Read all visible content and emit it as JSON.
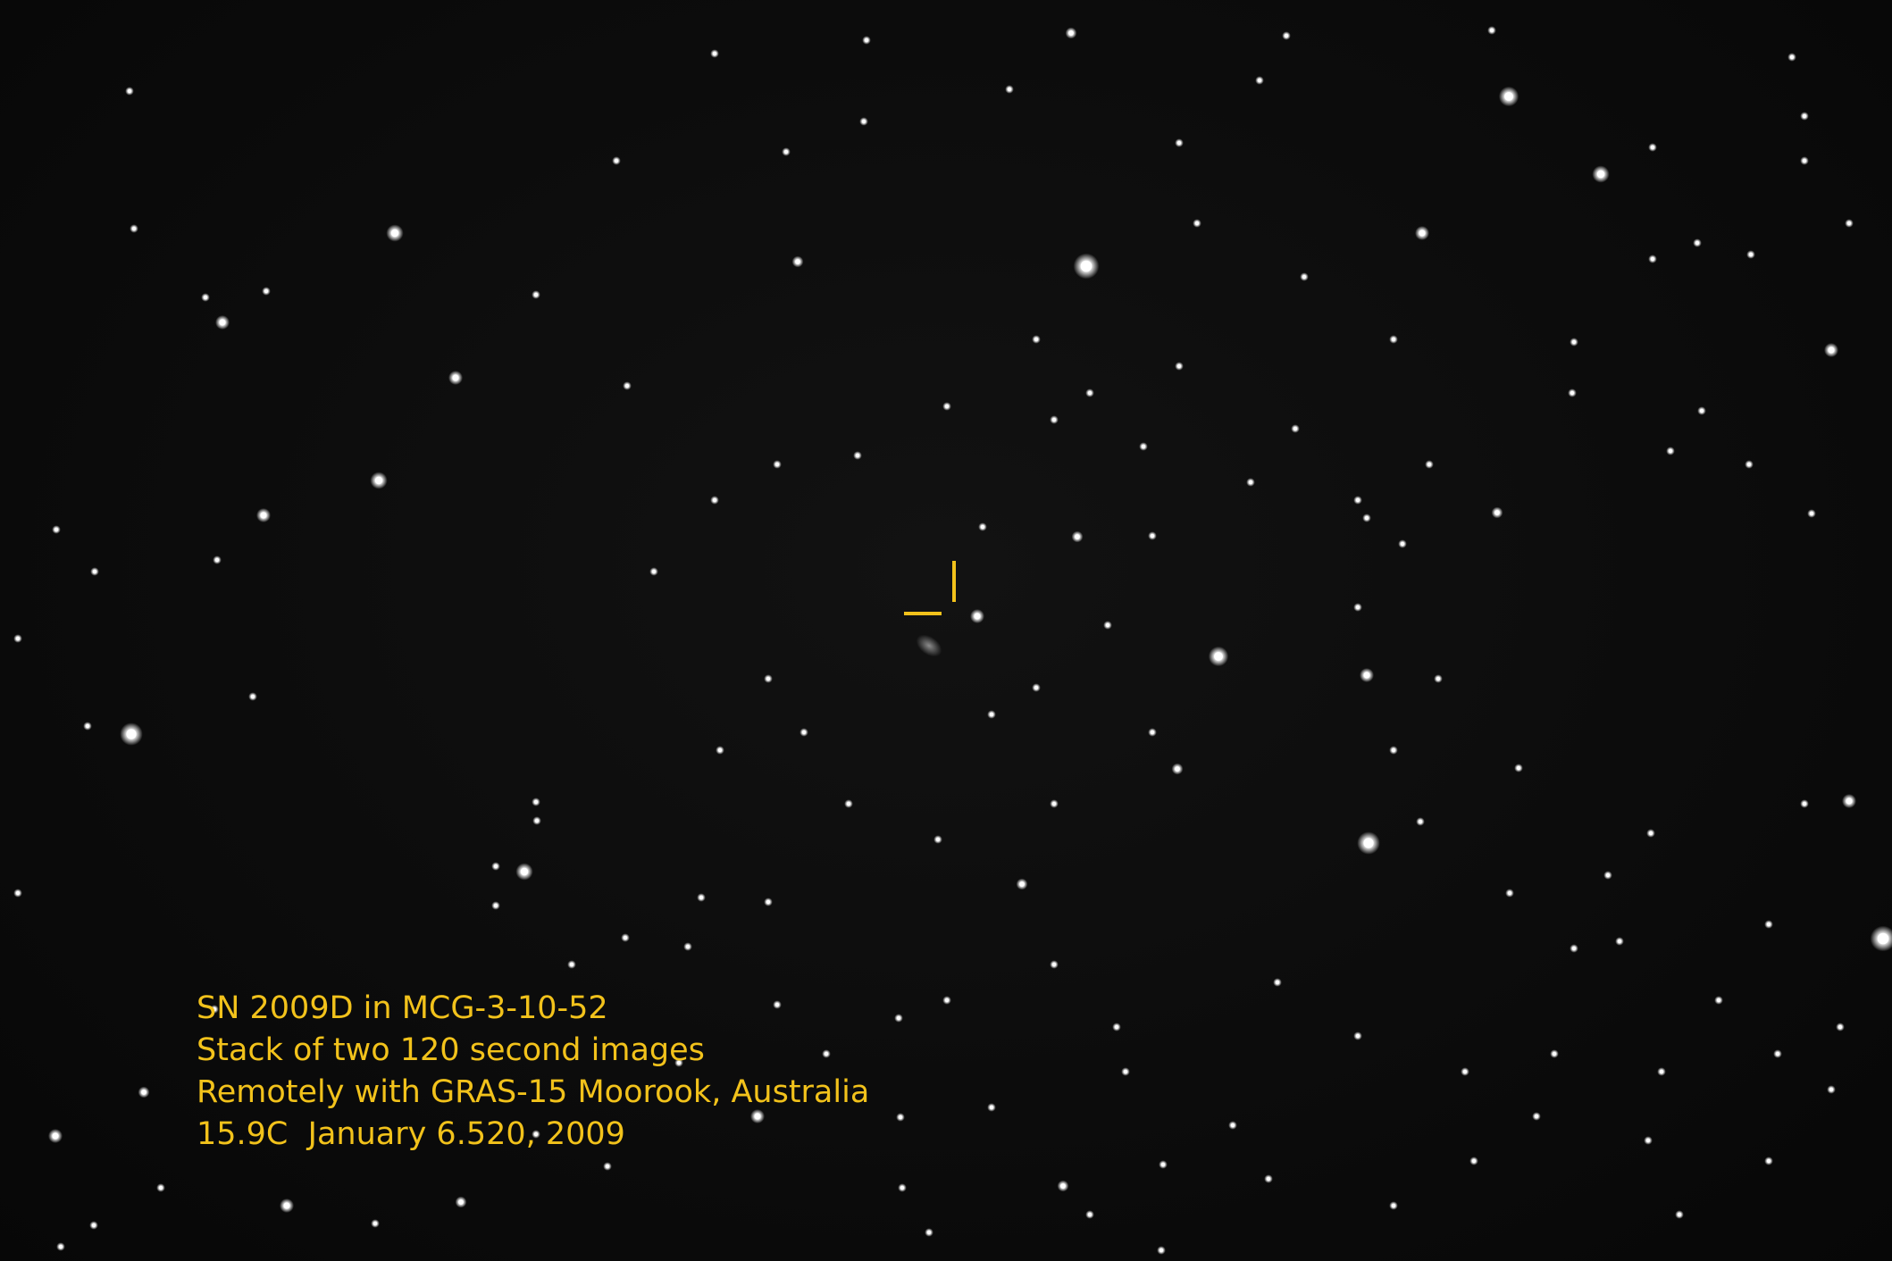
{
  "caption": {
    "lines": [
      "SN 2009D in MCG-3-10-52",
      "Stack of two 120 second images",
      "Remotely with GRAS-15 Moorook, Australia",
      "15.9C  January 6.520, 2009"
    ]
  },
  "colors": {
    "background": "#0b0b0b",
    "caption": "#f2c21b",
    "marker": "#f2c21b",
    "star": "#ffffff"
  }
}
